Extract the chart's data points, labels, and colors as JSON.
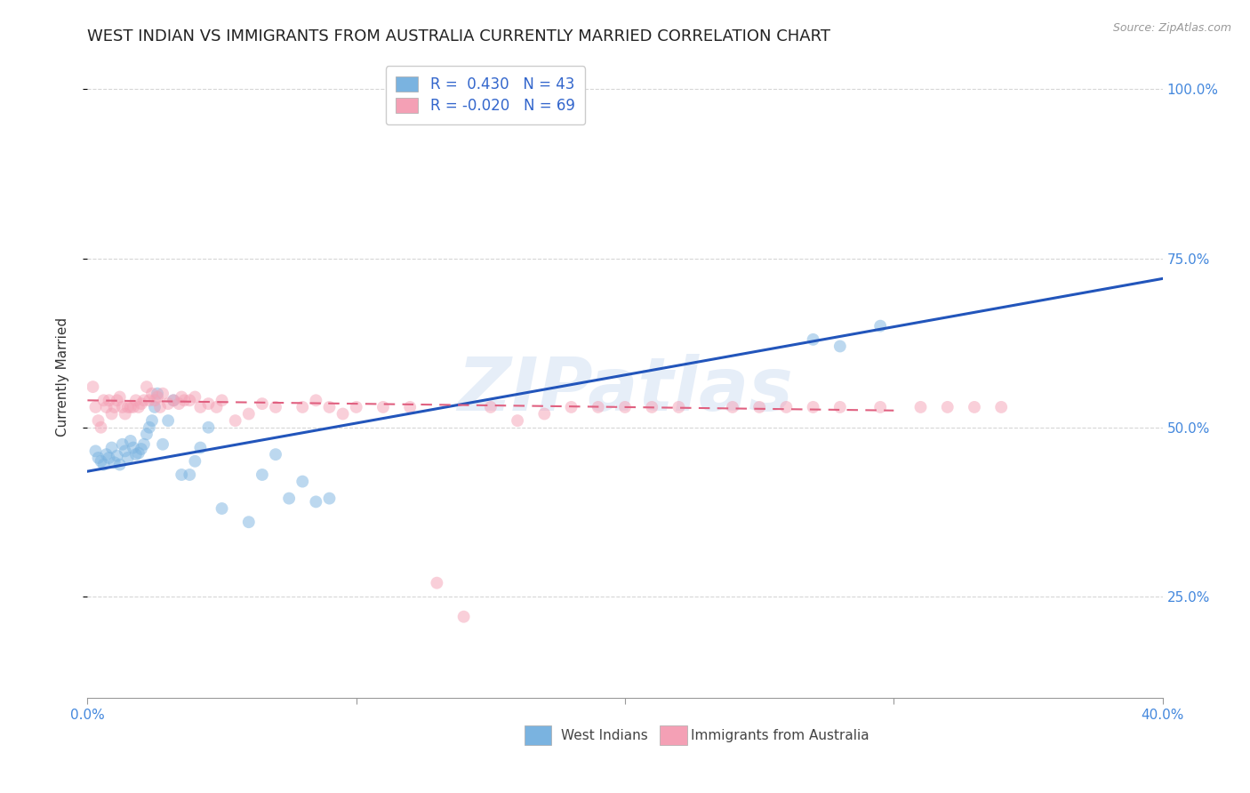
{
  "title": "WEST INDIAN VS IMMIGRANTS FROM AUSTRALIA CURRENTLY MARRIED CORRELATION CHART",
  "source": "Source: ZipAtlas.com",
  "ylabel": "Currently Married",
  "watermark": "ZIPatlas",
  "blue_scatter_x": [
    0.003,
    0.004,
    0.005,
    0.006,
    0.007,
    0.008,
    0.009,
    0.01,
    0.011,
    0.012,
    0.013,
    0.014,
    0.015,
    0.016,
    0.017,
    0.018,
    0.019,
    0.02,
    0.021,
    0.022,
    0.023,
    0.024,
    0.025,
    0.026,
    0.028,
    0.03,
    0.032,
    0.035,
    0.038,
    0.04,
    0.042,
    0.045,
    0.05,
    0.06,
    0.065,
    0.07,
    0.075,
    0.08,
    0.085,
    0.09,
    0.27,
    0.28,
    0.295
  ],
  "blue_scatter_y": [
    0.465,
    0.455,
    0.45,
    0.445,
    0.46,
    0.455,
    0.47,
    0.448,
    0.458,
    0.445,
    0.475,
    0.465,
    0.455,
    0.48,
    0.47,
    0.46,
    0.462,
    0.468,
    0.475,
    0.49,
    0.5,
    0.51,
    0.53,
    0.55,
    0.475,
    0.51,
    0.54,
    0.43,
    0.43,
    0.45,
    0.47,
    0.5,
    0.38,
    0.36,
    0.43,
    0.46,
    0.395,
    0.42,
    0.39,
    0.395,
    0.63,
    0.62,
    0.65
  ],
  "pink_scatter_x": [
    0.002,
    0.003,
    0.004,
    0.005,
    0.006,
    0.007,
    0.008,
    0.009,
    0.01,
    0.011,
    0.012,
    0.013,
    0.014,
    0.015,
    0.016,
    0.017,
    0.018,
    0.019,
    0.02,
    0.021,
    0.022,
    0.023,
    0.024,
    0.025,
    0.026,
    0.027,
    0.028,
    0.03,
    0.032,
    0.034,
    0.035,
    0.036,
    0.038,
    0.04,
    0.042,
    0.045,
    0.048,
    0.05,
    0.055,
    0.06,
    0.065,
    0.07,
    0.08,
    0.085,
    0.09,
    0.095,
    0.1,
    0.11,
    0.12,
    0.13,
    0.14,
    0.15,
    0.16,
    0.17,
    0.18,
    0.19,
    0.2,
    0.21,
    0.22,
    0.24,
    0.25,
    0.26,
    0.27,
    0.28,
    0.295,
    0.31,
    0.32,
    0.33,
    0.34
  ],
  "pink_scatter_y": [
    0.56,
    0.53,
    0.51,
    0.5,
    0.54,
    0.53,
    0.54,
    0.52,
    0.53,
    0.54,
    0.545,
    0.53,
    0.52,
    0.53,
    0.53,
    0.53,
    0.54,
    0.53,
    0.535,
    0.54,
    0.56,
    0.54,
    0.55,
    0.54,
    0.545,
    0.53,
    0.55,
    0.535,
    0.54,
    0.535,
    0.545,
    0.54,
    0.54,
    0.545,
    0.53,
    0.535,
    0.53,
    0.54,
    0.51,
    0.52,
    0.535,
    0.53,
    0.53,
    0.54,
    0.53,
    0.52,
    0.53,
    0.53,
    0.53,
    0.27,
    0.22,
    0.53,
    0.51,
    0.52,
    0.53,
    0.53,
    0.53,
    0.53,
    0.53,
    0.53,
    0.53,
    0.53,
    0.53,
    0.53,
    0.53,
    0.53,
    0.53,
    0.53,
    0.53
  ],
  "blue_line_x": [
    0.0,
    0.4
  ],
  "blue_line_y": [
    0.435,
    0.72
  ],
  "pink_line_x": [
    0.0,
    0.3
  ],
  "pink_line_y": [
    0.54,
    0.525
  ],
  "xlim": [
    0.0,
    0.4
  ],
  "ylim": [
    0.1,
    1.05
  ],
  "scatter_size": 100,
  "scatter_alpha": 0.5,
  "blue_color": "#7ab3e0",
  "pink_color": "#f4a0b5",
  "blue_line_color": "#2255bb",
  "pink_line_color": "#e06080",
  "background_color": "#ffffff",
  "grid_color": "#cccccc",
  "title_fontsize": 13,
  "label_fontsize": 11,
  "tick_fontsize": 11,
  "y_ticks": [
    0.25,
    0.5,
    0.75,
    1.0
  ],
  "y_tick_labels": [
    "25.0%",
    "50.0%",
    "75.0%",
    "100.0%"
  ],
  "x_ticks": [
    0.0,
    0.1,
    0.2,
    0.3,
    0.4
  ],
  "x_tick_labels_show": [
    "0.0%",
    "",
    "",
    "",
    "40.0%"
  ]
}
